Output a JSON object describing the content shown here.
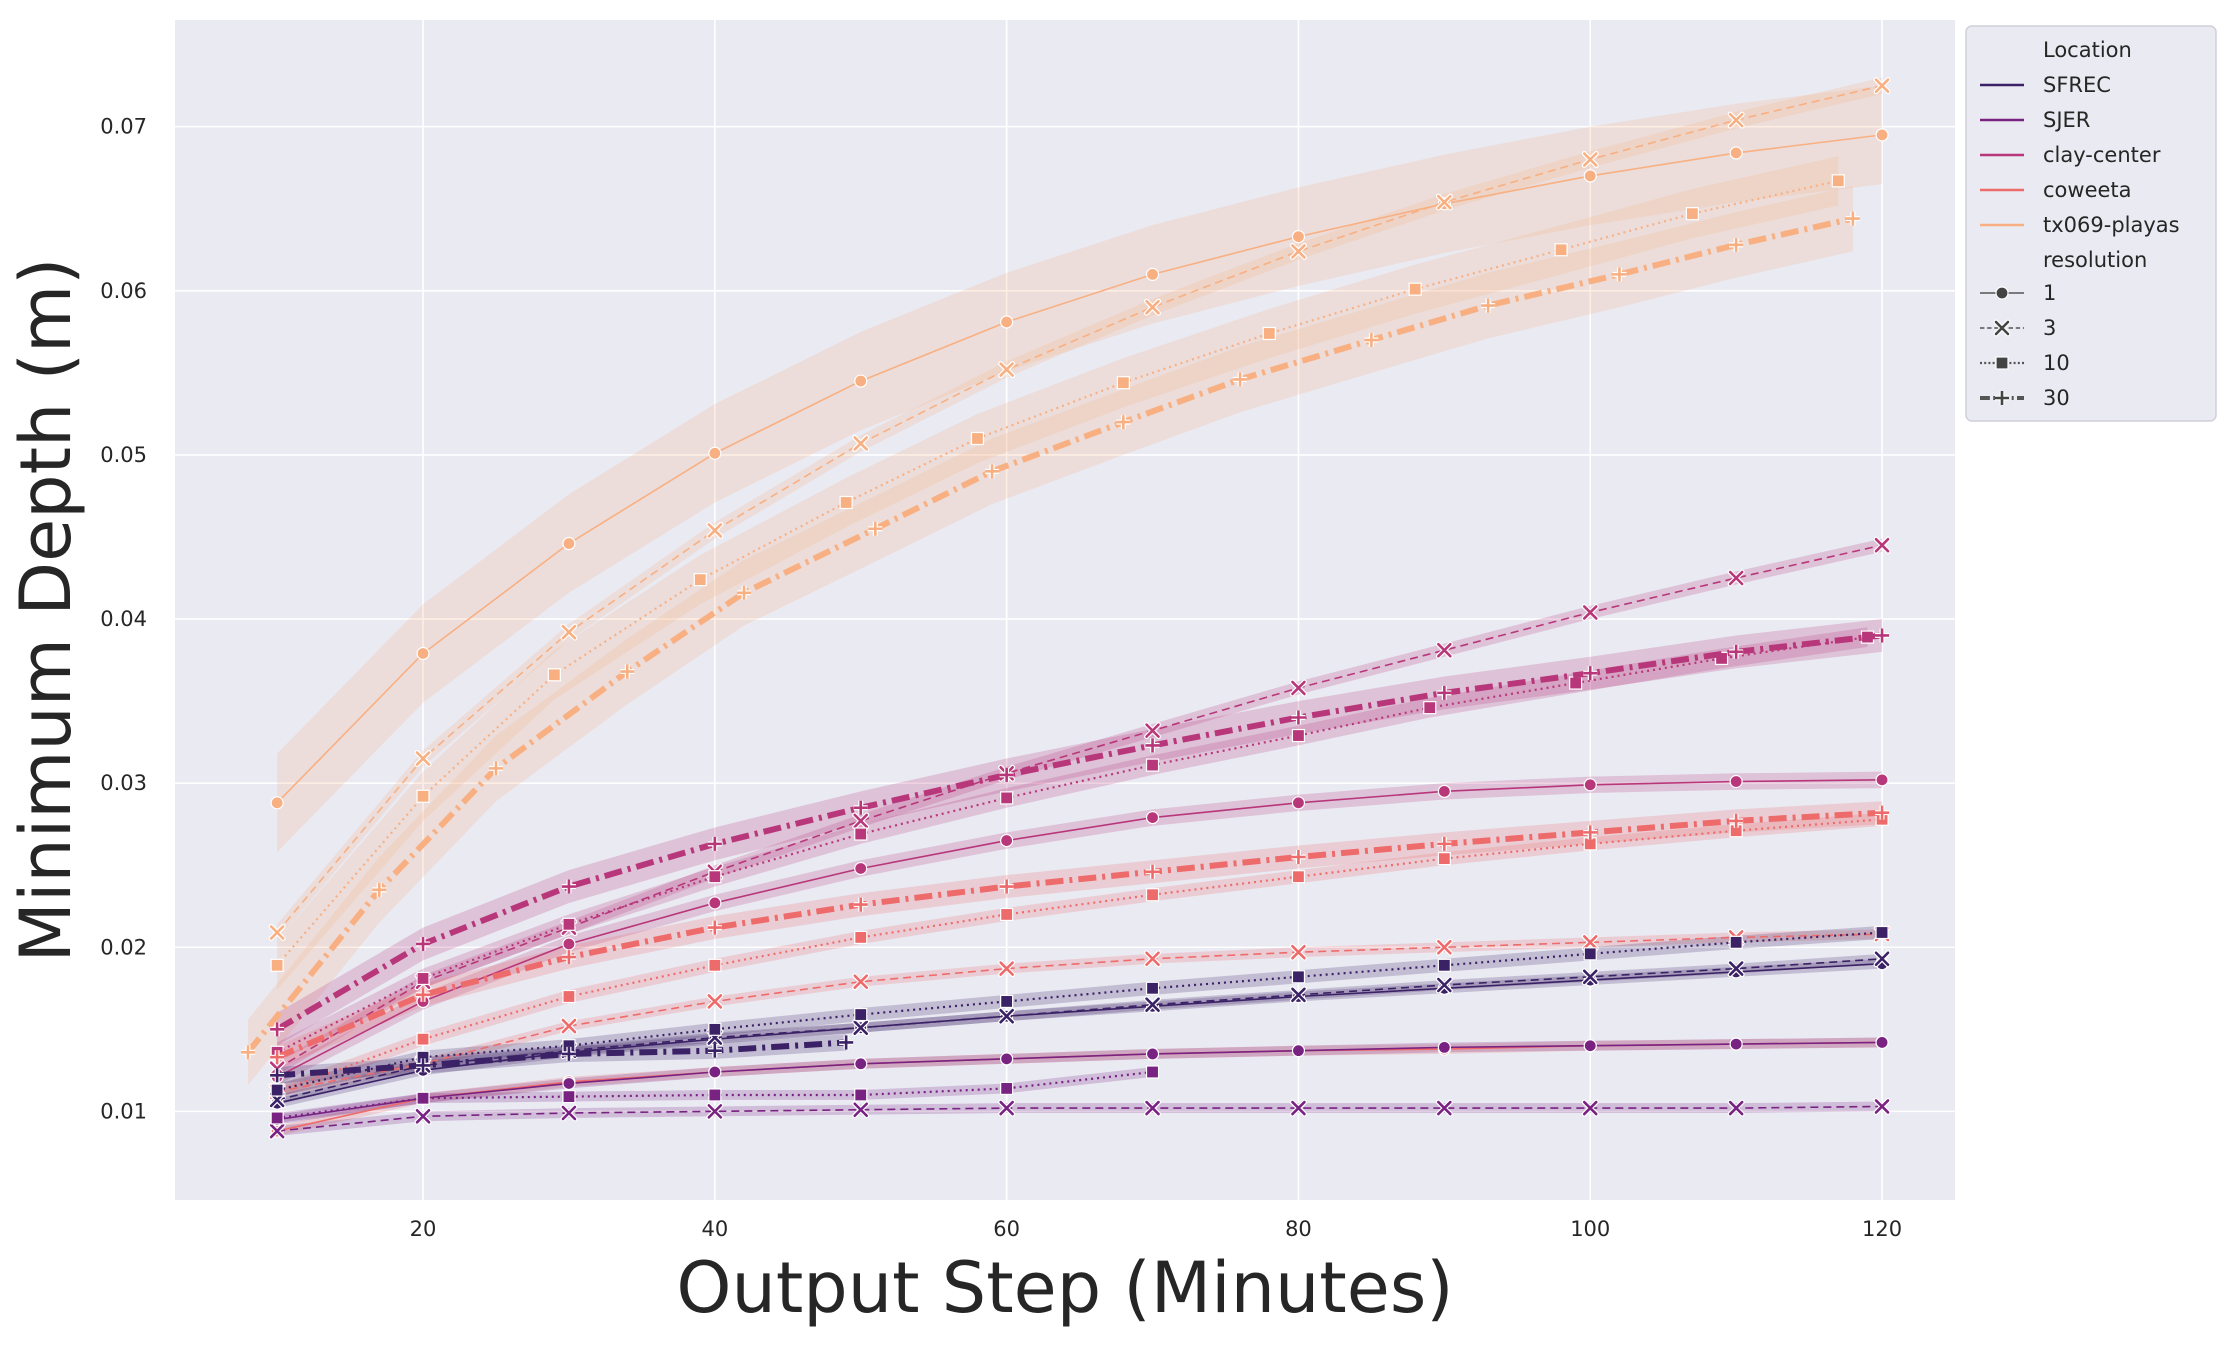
{
  "chart_data": {
    "type": "line",
    "title": "",
    "xlabel": "Output Step (Minutes)",
    "ylabel": "Minimum Depth (m)",
    "xlim": [
      3,
      125
    ],
    "ylim": [
      0.0046,
      0.0765
    ],
    "xticks": [
      20,
      40,
      60,
      80,
      100,
      120
    ],
    "yticks": [
      0.01,
      0.02,
      0.03,
      0.04,
      0.05,
      0.06,
      0.07
    ],
    "ytick_labels": [
      "0.01",
      "0.02",
      "0.03",
      "0.04",
      "0.05",
      "0.06",
      "0.07"
    ],
    "grid": true,
    "legend_position": "upper-right outside",
    "legend": {
      "hue_title": "Location",
      "style_title": "resolution",
      "locations": [
        {
          "name": "SFREC",
          "color": "#3b2165"
        },
        {
          "name": "SJER",
          "color": "#782281"
        },
        {
          "name": "clay-center",
          "color": "#b8377a"
        },
        {
          "name": "coweeta",
          "color": "#ee6b6b"
        },
        {
          "name": "tx069-playas",
          "color": "#f8b082"
        }
      ],
      "resolutions": [
        {
          "name": "1",
          "dash": "",
          "marker": "circle",
          "width": 1.6
        },
        {
          "name": "3",
          "dash": "8,5",
          "marker": "x",
          "width": 1.6
        },
        {
          "name": "10",
          "dash": "2,4",
          "marker": "square",
          "width": 2.2
        },
        {
          "name": "30",
          "dash": "18,6,3,6",
          "marker": "plus",
          "width": 6
        }
      ]
    },
    "series": [
      {
        "location": "tx069-playas",
        "resolution": "1",
        "band": 0.003,
        "x": [
          10,
          20,
          30,
          40,
          50,
          60,
          70,
          80,
          90,
          100,
          110,
          120
        ],
        "y": [
          0.0288,
          0.0379,
          0.0446,
          0.0501,
          0.0545,
          0.0581,
          0.061,
          0.0633,
          0.0653,
          0.067,
          0.0684,
          0.0695
        ]
      },
      {
        "location": "tx069-playas",
        "resolution": "3",
        "band": 0.0005,
        "x": [
          10,
          20,
          30,
          40,
          50,
          60,
          70,
          80,
          90,
          100,
          110,
          120
        ],
        "y": [
          0.0209,
          0.0315,
          0.0392,
          0.0454,
          0.0507,
          0.0552,
          0.059,
          0.0624,
          0.0654,
          0.068,
          0.0704,
          0.0725
        ]
      },
      {
        "location": "tx069-playas",
        "resolution": "10",
        "band": 0.0015,
        "x": [
          10,
          20,
          29,
          39,
          49,
          58,
          68,
          78,
          88,
          98,
          107,
          117
        ],
        "y": [
          0.0189,
          0.0292,
          0.0366,
          0.0424,
          0.0471,
          0.051,
          0.0544,
          0.0574,
          0.0601,
          0.0625,
          0.0647,
          0.0667
        ]
      },
      {
        "location": "tx069-playas",
        "resolution": "30",
        "band": 0.002,
        "x": [
          8,
          17,
          25,
          34,
          42,
          51,
          59,
          68,
          76,
          85,
          93,
          102,
          110,
          118
        ],
        "y": [
          0.0136,
          0.0235,
          0.0309,
          0.0368,
          0.0416,
          0.0455,
          0.049,
          0.052,
          0.0546,
          0.057,
          0.0591,
          0.061,
          0.0628,
          0.0644
        ]
      },
      {
        "location": "clay-center",
        "resolution": "1",
        "band": 0.0005,
        "x": [
          10,
          20,
          30,
          40,
          50,
          60,
          70,
          80,
          90,
          100,
          110,
          120
        ],
        "y": [
          0.0121,
          0.0167,
          0.0202,
          0.0227,
          0.0248,
          0.0265,
          0.0279,
          0.0288,
          0.0295,
          0.0299,
          0.0301,
          0.0302
        ]
      },
      {
        "location": "clay-center",
        "resolution": "3",
        "band": 0.0004,
        "x": [
          10,
          20,
          30,
          40,
          50,
          60,
          70,
          80,
          90,
          100,
          110,
          120
        ],
        "y": [
          0.0126,
          0.0179,
          0.0212,
          0.0246,
          0.0277,
          0.0306,
          0.0332,
          0.0358,
          0.0381,
          0.0404,
          0.0425,
          0.0445
        ]
      },
      {
        "location": "clay-center",
        "resolution": "10",
        "band": 0.0006,
        "x": [
          10,
          20,
          30,
          40,
          50,
          60,
          70,
          80,
          89,
          99,
          109,
          119
        ],
        "y": [
          0.0136,
          0.0181,
          0.0214,
          0.0243,
          0.0269,
          0.0291,
          0.0311,
          0.0329,
          0.0346,
          0.0361,
          0.0376,
          0.0389
        ]
      },
      {
        "location": "clay-center",
        "resolution": "30",
        "band": 0.001,
        "x": [
          10,
          20,
          30,
          40,
          50,
          60,
          70,
          80,
          90,
          100,
          110,
          120
        ],
        "y": [
          0.015,
          0.0202,
          0.0237,
          0.0263,
          0.0285,
          0.0305,
          0.0323,
          0.034,
          0.0355,
          0.0367,
          0.038,
          0.039
        ]
      },
      {
        "location": "coweeta",
        "resolution": "1",
        "band": 0.0003,
        "x": [
          10,
          20,
          30,
          40,
          50,
          60,
          70,
          80,
          90,
          100,
          110,
          120
        ],
        "y": [
          0.0088,
          0.0108,
          0.0118,
          0.0124,
          0.0129,
          0.0132,
          0.0135,
          0.0137,
          0.0138,
          0.014,
          0.0141,
          0.0142
        ]
      },
      {
        "location": "coweeta",
        "resolution": "3",
        "band": 0.0003,
        "x": [
          10,
          20,
          30,
          40,
          50,
          60,
          70,
          80,
          90,
          100,
          110,
          120
        ],
        "y": [
          0.0112,
          0.0129,
          0.0152,
          0.0167,
          0.0179,
          0.0187,
          0.0193,
          0.0197,
          0.02,
          0.0203,
          0.0206,
          0.0208
        ]
      },
      {
        "location": "coweeta",
        "resolution": "10",
        "band": 0.0004,
        "x": [
          10,
          20,
          30,
          40,
          50,
          60,
          70,
          80,
          90,
          100,
          110,
          120
        ],
        "y": [
          0.0112,
          0.0144,
          0.017,
          0.0189,
          0.0206,
          0.022,
          0.0232,
          0.0243,
          0.0254,
          0.0263,
          0.0271,
          0.0278
        ]
      },
      {
        "location": "coweeta",
        "resolution": "30",
        "band": 0.0007,
        "x": [
          10,
          20,
          30,
          40,
          50,
          60,
          70,
          80,
          90,
          100,
          110,
          120
        ],
        "y": [
          0.0133,
          0.0171,
          0.0194,
          0.0212,
          0.0226,
          0.0237,
          0.0246,
          0.0255,
          0.0263,
          0.027,
          0.0277,
          0.0282
        ]
      },
      {
        "location": "SJER",
        "resolution": "1",
        "band": 0.0003,
        "x": [
          10,
          20,
          30,
          40,
          50,
          60,
          70,
          80,
          90,
          100,
          110,
          120
        ],
        "y": [
          0.0095,
          0.0108,
          0.0117,
          0.0124,
          0.0129,
          0.0132,
          0.0135,
          0.0137,
          0.0139,
          0.014,
          0.0141,
          0.0142
        ]
      },
      {
        "location": "SJER",
        "resolution": "3",
        "band": 0.0003,
        "x": [
          10,
          20,
          30,
          40,
          50,
          60,
          70,
          80,
          90,
          100,
          110,
          120
        ],
        "y": [
          0.0088,
          0.0097,
          0.0099,
          0.01,
          0.0101,
          0.0102,
          0.0102,
          0.0102,
          0.0102,
          0.0102,
          0.0102,
          0.0103
        ]
      },
      {
        "location": "SJER",
        "resolution": "10",
        "band": 0.0003,
        "x": [
          10,
          20,
          30,
          40,
          50,
          60,
          70
        ],
        "y": [
          0.0096,
          0.0108,
          0.0109,
          0.011,
          0.011,
          0.0114,
          0.0124
        ]
      },
      {
        "location": "SFREC",
        "resolution": "1",
        "band": 0.0003,
        "x": [
          10,
          20,
          30,
          40,
          50,
          60,
          70,
          80,
          90,
          100,
          110,
          120
        ],
        "y": [
          0.0105,
          0.0125,
          0.0136,
          0.0144,
          0.0151,
          0.0158,
          0.0164,
          0.017,
          0.0175,
          0.018,
          0.0185,
          0.019
        ]
      },
      {
        "location": "SFREC",
        "resolution": "3",
        "band": 0.0003,
        "x": [
          10,
          20,
          30,
          40,
          50,
          60,
          70,
          80,
          90,
          100,
          110,
          120
        ],
        "y": [
          0.0107,
          0.0128,
          0.0137,
          0.0145,
          0.0151,
          0.0158,
          0.0165,
          0.0171,
          0.0177,
          0.0182,
          0.0187,
          0.0193
        ]
      },
      {
        "location": "SFREC",
        "resolution": "10",
        "band": 0.0004,
        "x": [
          10,
          20,
          30,
          40,
          50,
          60,
          70,
          80,
          90,
          100,
          110,
          120
        ],
        "y": [
          0.0113,
          0.0133,
          0.014,
          0.015,
          0.0159,
          0.0167,
          0.0175,
          0.0182,
          0.0189,
          0.0196,
          0.0203,
          0.0209
        ]
      },
      {
        "location": "SFREC",
        "resolution": "30",
        "band": 0.0005,
        "x": [
          10,
          20,
          30,
          40,
          49
        ],
        "y": [
          0.0122,
          0.0128,
          0.0135,
          0.0137,
          0.0142
        ]
      }
    ]
  }
}
